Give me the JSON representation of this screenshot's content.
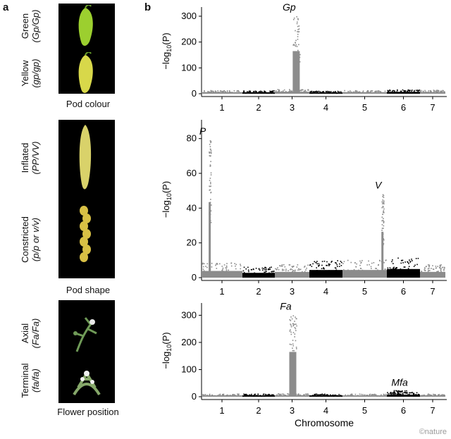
{
  "panel_a": {
    "letter": "a",
    "groups": [
      {
        "caption": "Pod colour",
        "rows": [
          {
            "label_top": "Green",
            "label_bottom": "(Gp/Gp)",
            "fruit_color": "#9ccf2f",
            "shape": "pod"
          },
          {
            "label_top": "Yellow",
            "label_bottom": "(gp/gp)",
            "fruit_color": "#d8d84a",
            "shape": "pod"
          }
        ]
      },
      {
        "caption": "Pod shape",
        "rows": [
          {
            "label_top": "Inflated",
            "label_bottom": "(PP/VV)",
            "fruit_color": "#d9d26a",
            "shape": "long-pod"
          },
          {
            "label_top": "Constricted",
            "label_bottom": "(p/p or v/v)",
            "fruit_color": "#d8c045",
            "shape": "constricted-pod"
          }
        ]
      },
      {
        "caption": "Flower position",
        "rows": [
          {
            "label_top": "Axial",
            "label_bottom": "(Fa/Fa)",
            "fruit_color": "#6f9a57",
            "shape": "plant"
          },
          {
            "label_top": "Terminal",
            "label_bottom": "(fa/fa)",
            "fruit_color": "#86a86a",
            "shape": "plant-bushy"
          }
        ]
      }
    ]
  },
  "panel_b": {
    "letter": "b",
    "xlabel": "Chromosome",
    "ylabel_prefix": "−log",
    "ylabel_sub": "10",
    "ylabel_suffix": "(P)"
  },
  "colors": {
    "gray": "#8c8c8c",
    "black": "#000000"
  },
  "copyright": "©nature",
  "chart_data": [
    {
      "type": "scatter",
      "subtype": "manhattan",
      "ylim": [
        0,
        330
      ],
      "yticks": [
        0,
        100,
        200,
        300
      ],
      "categories": [
        "1",
        "2",
        "3",
        "4",
        "5",
        "6",
        "7"
      ],
      "baseline": [
        11,
        10,
        14,
        9,
        11,
        13,
        12
      ],
      "peaks": [
        {
          "chromosome": "3",
          "value": 300,
          "label": "Gp"
        }
      ]
    },
    {
      "type": "scatter",
      "subtype": "manhattan",
      "ylim": [
        0,
        90
      ],
      "yticks": [
        0,
        20,
        40,
        60,
        80
      ],
      "categories": [
        "1",
        "2",
        "3",
        "4",
        "5",
        "6",
        "7"
      ],
      "baseline": [
        7,
        5,
        6,
        8,
        8,
        9,
        6
      ],
      "peaks": [
        {
          "chromosome": "1",
          "value": 79,
          "label": "P"
        },
        {
          "chromosome": "5",
          "value": 48,
          "label": "V"
        }
      ]
    },
    {
      "type": "scatter",
      "subtype": "manhattan",
      "ylim": [
        0,
        340
      ],
      "yticks": [
        0,
        100,
        200,
        300
      ],
      "categories": [
        "1",
        "2",
        "3",
        "4",
        "5",
        "6",
        "7"
      ],
      "baseline": [
        9,
        9,
        10,
        9,
        9,
        14,
        9
      ],
      "peaks": [
        {
          "chromosome": "3",
          "value": 300,
          "label": "Fa"
        },
        {
          "chromosome": "6",
          "value": 25,
          "label": "Mfa"
        }
      ]
    }
  ]
}
